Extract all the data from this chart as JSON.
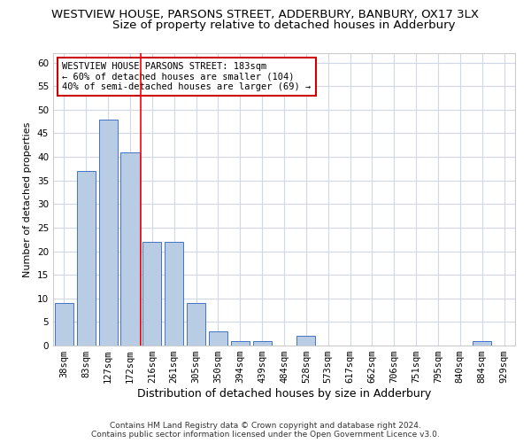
{
  "title": "WESTVIEW HOUSE, PARSONS STREET, ADDERBURY, BANBURY, OX17 3LX",
  "subtitle": "Size of property relative to detached houses in Adderbury",
  "xlabel": "Distribution of detached houses by size in Adderbury",
  "ylabel": "Number of detached properties",
  "categories": [
    "38sqm",
    "83sqm",
    "127sqm",
    "172sqm",
    "216sqm",
    "261sqm",
    "305sqm",
    "350sqm",
    "394sqm",
    "439sqm",
    "484sqm",
    "528sqm",
    "573sqm",
    "617sqm",
    "662sqm",
    "706sqm",
    "751sqm",
    "795sqm",
    "840sqm",
    "884sqm",
    "929sqm"
  ],
  "values": [
    9,
    37,
    48,
    41,
    22,
    22,
    9,
    3,
    1,
    1,
    0,
    2,
    0,
    0,
    0,
    0,
    0,
    0,
    0,
    1,
    0
  ],
  "bar_color": "#b8cce4",
  "bar_edge_color": "#4472c4",
  "grid_color": "#d0d8e8",
  "background_color": "#ffffff",
  "annotation_text": "WESTVIEW HOUSE PARSONS STREET: 183sqm\n← 60% of detached houses are smaller (104)\n40% of semi-detached houses are larger (69) →",
  "annotation_box_color": "#ffffff",
  "annotation_box_edge_color": "#cc0000",
  "ylim": [
    0,
    62
  ],
  "yticks": [
    0,
    5,
    10,
    15,
    20,
    25,
    30,
    35,
    40,
    45,
    50,
    55,
    60
  ],
  "footer_line1": "Contains HM Land Registry data © Crown copyright and database right 2024.",
  "footer_line2": "Contains public sector information licensed under the Open Government Licence v3.0.",
  "title_fontsize": 9.5,
  "subtitle_fontsize": 9.5,
  "xlabel_fontsize": 9,
  "ylabel_fontsize": 8,
  "tick_fontsize": 7.5,
  "annotation_fontsize": 7.5,
  "footer_fontsize": 6.5
}
